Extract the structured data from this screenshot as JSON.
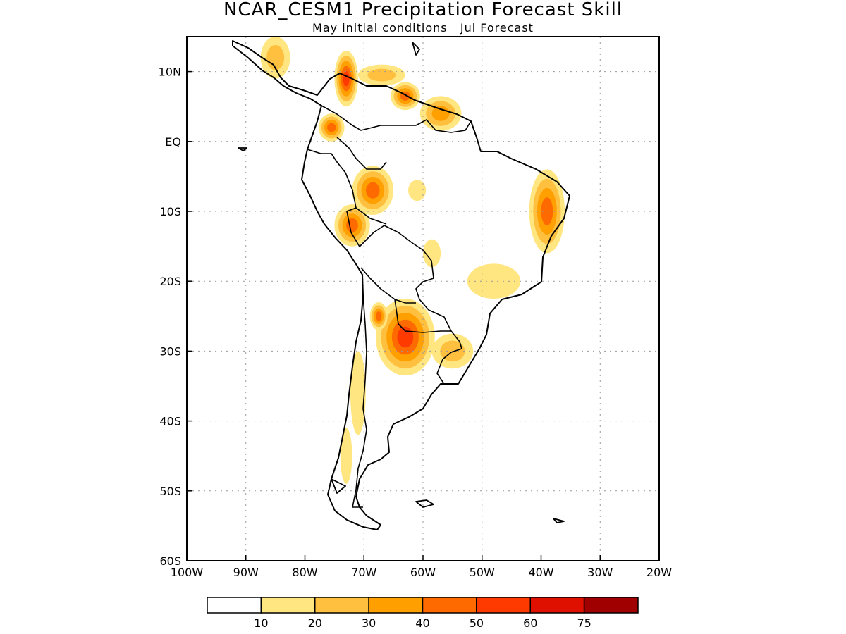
{
  "title": "NCAR_CESM1 Precipitation Forecast Skill",
  "subtitle": "May initial conditions   Jul Forecast",
  "map": {
    "projection": "lat-lon",
    "lon_range": [
      -100,
      -20
    ],
    "lat_range": [
      -60,
      15
    ],
    "grid": "dotted",
    "region": "South America"
  },
  "axes": {
    "x_ticks": [
      {
        "value": -100,
        "label": "100W"
      },
      {
        "value": -90,
        "label": "90W"
      },
      {
        "value": -80,
        "label": "80W"
      },
      {
        "value": -70,
        "label": "70W"
      },
      {
        "value": -60,
        "label": "60W"
      },
      {
        "value": -50,
        "label": "50W"
      },
      {
        "value": -40,
        "label": "40W"
      },
      {
        "value": -30,
        "label": "30W"
      },
      {
        "value": -20,
        "label": "20W"
      }
    ],
    "y_ticks": [
      {
        "value": 10,
        "label": "10N"
      },
      {
        "value": 0,
        "label": "EQ"
      },
      {
        "value": -10,
        "label": "10S"
      },
      {
        "value": -20,
        "label": "20S"
      },
      {
        "value": -30,
        "label": "30S"
      },
      {
        "value": -40,
        "label": "40S"
      },
      {
        "value": -50,
        "label": "50S"
      },
      {
        "value": -60,
        "label": "60S"
      }
    ]
  },
  "colorbar": {
    "bins": [
      {
        "color": "#ffffff",
        "label": ""
      },
      {
        "color": "#ffe680",
        "label": "10"
      },
      {
        "color": "#ffc040",
        "label": "20"
      },
      {
        "color": "#ffa000",
        "label": "30"
      },
      {
        "color": "#ff6a00",
        "label": "40"
      },
      {
        "color": "#ff3a00",
        "label": "50"
      },
      {
        "color": "#e01000",
        "label": "60"
      },
      {
        "color": "#a00000",
        "label": "75"
      }
    ]
  },
  "skill_regions": [
    {
      "name": "central-america",
      "lon": -85,
      "lat": 12,
      "rx": 2.5,
      "ry": 3,
      "level": 2
    },
    {
      "name": "northern-colombia",
      "lon": -73,
      "lat": 9,
      "rx": 2,
      "ry": 4,
      "level": 5
    },
    {
      "name": "western-colombia",
      "lon": -75.5,
      "lat": 2,
      "rx": 2.2,
      "ry": 2,
      "level": 4
    },
    {
      "name": "northern-venezuela",
      "lon": -67,
      "lat": 9.5,
      "rx": 4,
      "ry": 1.5,
      "level": 2
    },
    {
      "name": "venezuela-guayana",
      "lon": -63,
      "lat": 6.5,
      "rx": 2.5,
      "ry": 2,
      "level": 4
    },
    {
      "name": "guianas",
      "lon": -57,
      "lat": 4,
      "rx": 3.5,
      "ry": 2.5,
      "level": 3
    },
    {
      "name": "western-amazon",
      "lon": -68.5,
      "lat": -7,
      "rx": 3.5,
      "ry": 3.5,
      "level": 4
    },
    {
      "name": "central-amazon",
      "lon": -61,
      "lat": -7,
      "rx": 1.5,
      "ry": 1.5,
      "level": 1
    },
    {
      "name": "peru-bolivia",
      "lon": -72,
      "lat": -12,
      "rx": 3,
      "ry": 3,
      "level": 4
    },
    {
      "name": "northeast-brazil",
      "lon": -39,
      "lat": -10,
      "rx": 3,
      "ry": 6,
      "level": 4
    },
    {
      "name": "mato-grosso",
      "lon": -58.5,
      "lat": -16,
      "rx": 1.5,
      "ry": 2,
      "level": 1
    },
    {
      "name": "southeast-brazil",
      "lon": -48,
      "lat": -20,
      "rx": 4.5,
      "ry": 2.5,
      "level": 1
    },
    {
      "name": "northern-argentina",
      "lon": -63,
      "lat": -28,
      "rx": 5,
      "ry": 5.5,
      "level": 5
    },
    {
      "name": "andes-north-chile",
      "lon": -67.5,
      "lat": -25,
      "rx": 1.5,
      "ry": 2,
      "level": 4
    },
    {
      "name": "uruguay-south-brazil",
      "lon": -55,
      "lat": -30,
      "rx": 3.5,
      "ry": 2.5,
      "level": 2
    },
    {
      "name": "central-chile",
      "lon": -71,
      "lat": -36,
      "rx": 1.3,
      "ry": 6,
      "level": 1
    },
    {
      "name": "southern-chile",
      "lon": -73,
      "lat": -45,
      "rx": 1,
      "ry": 4,
      "level": 1
    }
  ]
}
